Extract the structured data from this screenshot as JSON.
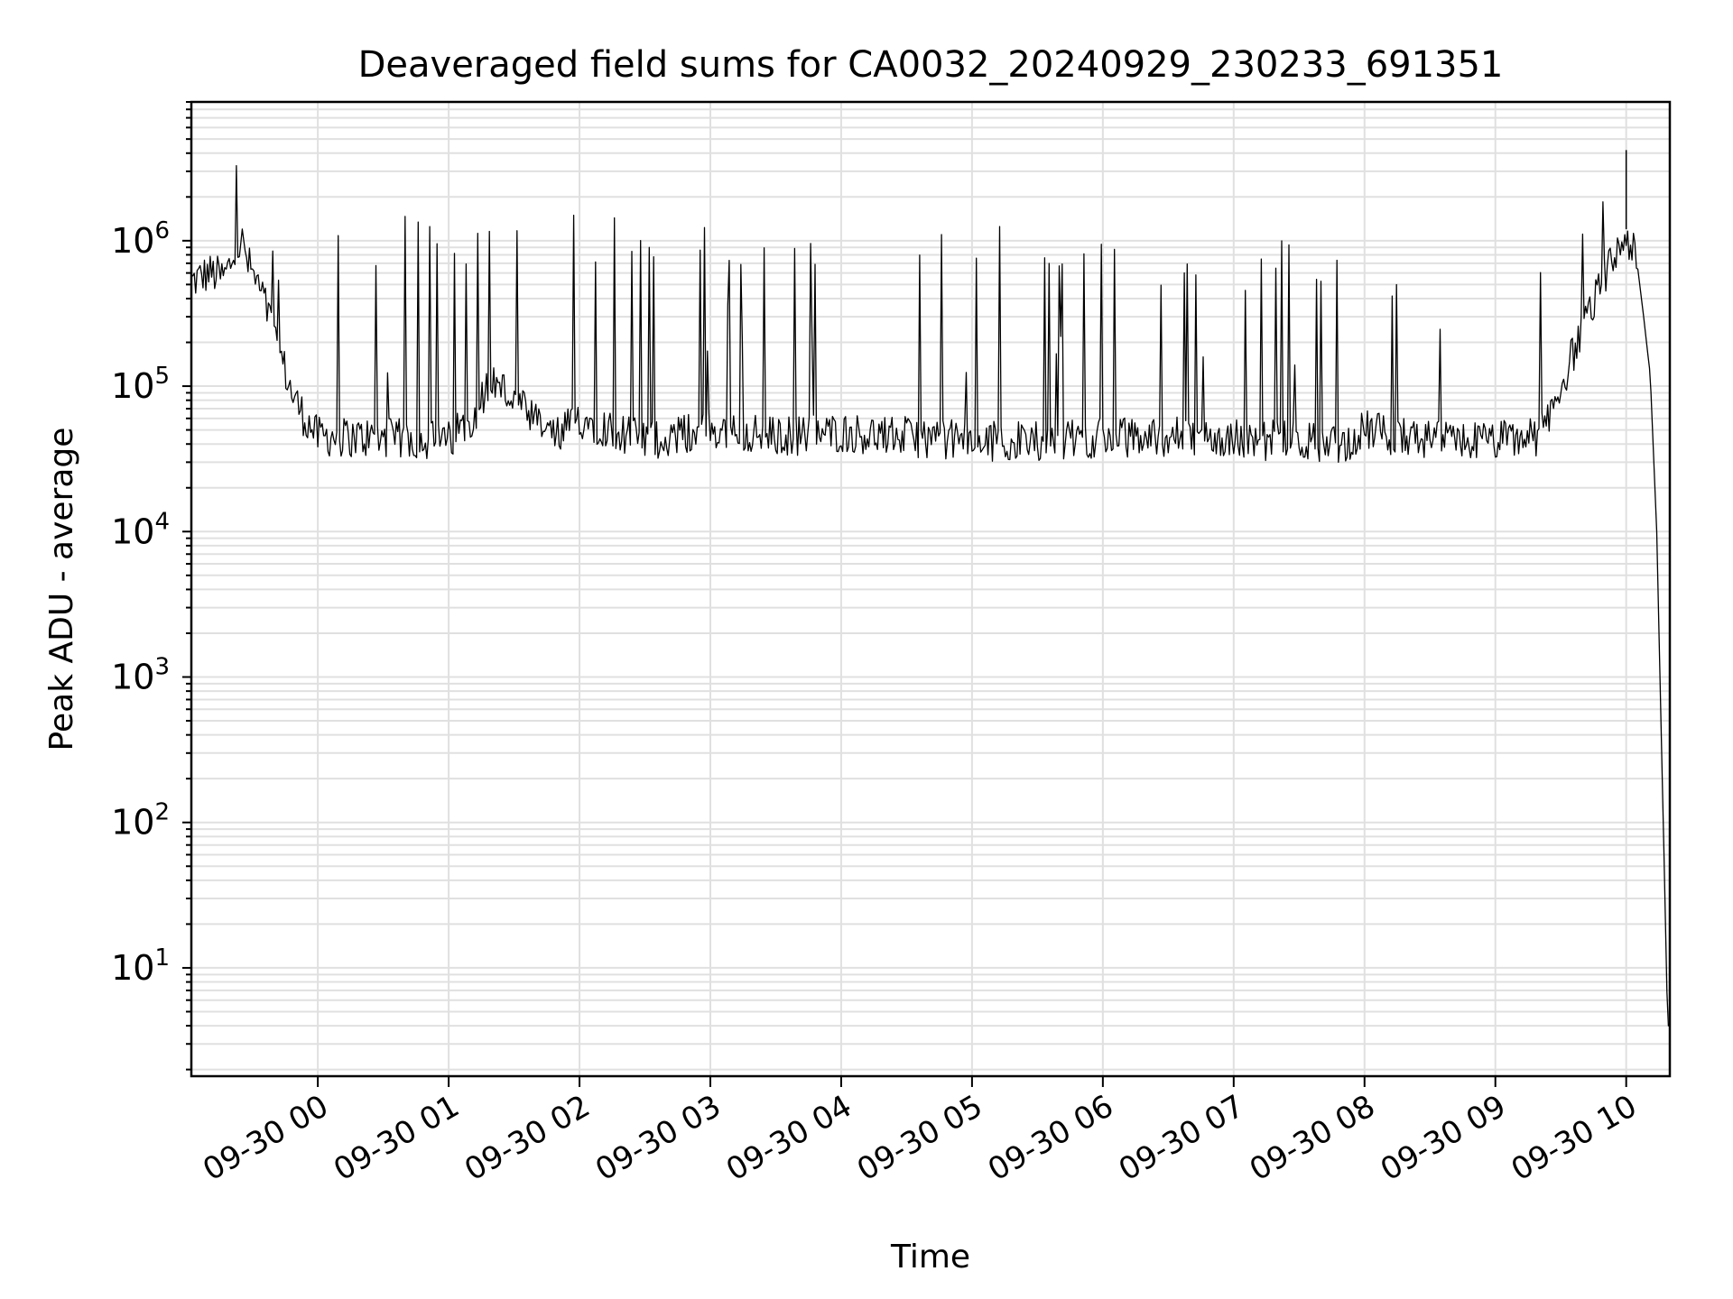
{
  "chart_data": {
    "type": "line",
    "title": "Deaveraged field sums for CA0032_20240929_230233_691351",
    "xlabel": "Time",
    "ylabel": "Peak ADU - average",
    "yscale": "log",
    "ylim": [
      1.8,
      9000000
    ],
    "yticks": [
      {
        "value": 10,
        "base": "10",
        "exp": "1"
      },
      {
        "value": 100,
        "base": "10",
        "exp": "2"
      },
      {
        "value": 1000,
        "base": "10",
        "exp": "3"
      },
      {
        "value": 10000,
        "base": "10",
        "exp": "4"
      },
      {
        "value": 100000,
        "base": "10",
        "exp": "5"
      },
      {
        "value": 1000000,
        "base": "10",
        "exp": "6"
      }
    ],
    "xlim": [
      "2024-09-29 23:02",
      "2024-09-30 10:20"
    ],
    "xticks": [
      {
        "time": "2024-09-30 00:00",
        "label": "09-30 00"
      },
      {
        "time": "2024-09-30 01:00",
        "label": "09-30 01"
      },
      {
        "time": "2024-09-30 02:00",
        "label": "09-30 02"
      },
      {
        "time": "2024-09-30 03:00",
        "label": "09-30 03"
      },
      {
        "time": "2024-09-30 04:00",
        "label": "09-30 04"
      },
      {
        "time": "2024-09-30 05:00",
        "label": "09-30 05"
      },
      {
        "time": "2024-09-30 06:00",
        "label": "09-30 06"
      },
      {
        "time": "2024-09-30 07:00",
        "label": "09-30 07"
      },
      {
        "time": "2024-09-30 08:00",
        "label": "09-30 08"
      },
      {
        "time": "2024-09-30 09:00",
        "label": "09-30 09"
      },
      {
        "time": "2024-09-30 10:00",
        "label": "09-30 10"
      }
    ],
    "grid": true,
    "series_color": "#000000",
    "grid_color": "#e0e0e0",
    "series": [
      {
        "x": [
          "2024-09-29 23:02",
          "2024-09-29 23:10",
          "2024-09-29 23:17",
          "2024-09-29 23:25",
          "2024-09-29 23:28",
          "2024-09-29 23:35",
          "2024-09-29 23:42",
          "2024-09-29 23:48",
          "2024-09-29 23:54",
          "2024-09-30 00:00",
          "2024-09-30 00:30",
          "2024-09-30 01:00",
          "2024-09-30 01:10",
          "2024-09-30 01:20",
          "2024-09-30 01:30",
          "2024-09-30 01:40",
          "2024-09-30 01:50",
          "2024-09-30 02:00",
          "2024-09-30 02:30",
          "2024-09-30 03:00",
          "2024-09-30 03:30",
          "2024-09-30 04:00",
          "2024-09-30 04:30",
          "2024-09-30 05:00",
          "2024-09-30 05:30",
          "2024-09-30 06:00",
          "2024-09-30 06:30",
          "2024-09-30 07:00",
          "2024-09-30 07:30",
          "2024-09-30 07:50",
          "2024-09-30 08:00",
          "2024-09-30 08:30",
          "2024-09-30 09:00",
          "2024-09-30 09:20",
          "2024-09-30 09:30",
          "2024-09-30 09:40",
          "2024-09-30 09:50",
          "2024-09-30 10:00",
          "2024-09-30 10:05",
          "2024-09-30 10:08",
          "2024-09-30 10:11",
          "2024-09-30 10:14",
          "2024-09-30 10:17",
          "2024-09-30 10:19"
        ],
        "y": [
          520000,
          600000,
          560000,
          1000000,
          700000,
          400000,
          180000,
          90000,
          60000,
          45000,
          44000,
          42000,
          60000,
          110000,
          80000,
          55000,
          45000,
          60000,
          42000,
          50000,
          45000,
          48000,
          45000,
          42000,
          42000,
          44000,
          45000,
          43000,
          42000,
          40000,
          50000,
          42000,
          42000,
          45000,
          100000,
          250000,
          550000,
          1100000,
          700000,
          300000,
          120000,
          10000,
          100,
          4
        ]
      }
    ],
    "spikes": {
      "description_free": true,
      "dense_ranges": [
        {
          "start": "2024-09-30 00:05",
          "end": "2024-09-30 01:30",
          "peak": 1500000
        },
        {
          "start": "2024-09-30 01:30",
          "end": "2024-09-30 02:00",
          "peak": 1500000
        },
        {
          "start": "2024-09-30 02:00",
          "end": "2024-09-30 03:50",
          "peak": 1450000
        },
        {
          "start": "2024-09-30 04:20",
          "end": "2024-09-30 06:20",
          "peak": 1400000
        },
        {
          "start": "2024-09-30 06:20",
          "end": "2024-09-30 07:50",
          "peak": 1000000
        },
        {
          "start": "2024-09-30 08:05",
          "end": "2024-09-30 09:25",
          "peak": 900000
        }
      ]
    }
  }
}
